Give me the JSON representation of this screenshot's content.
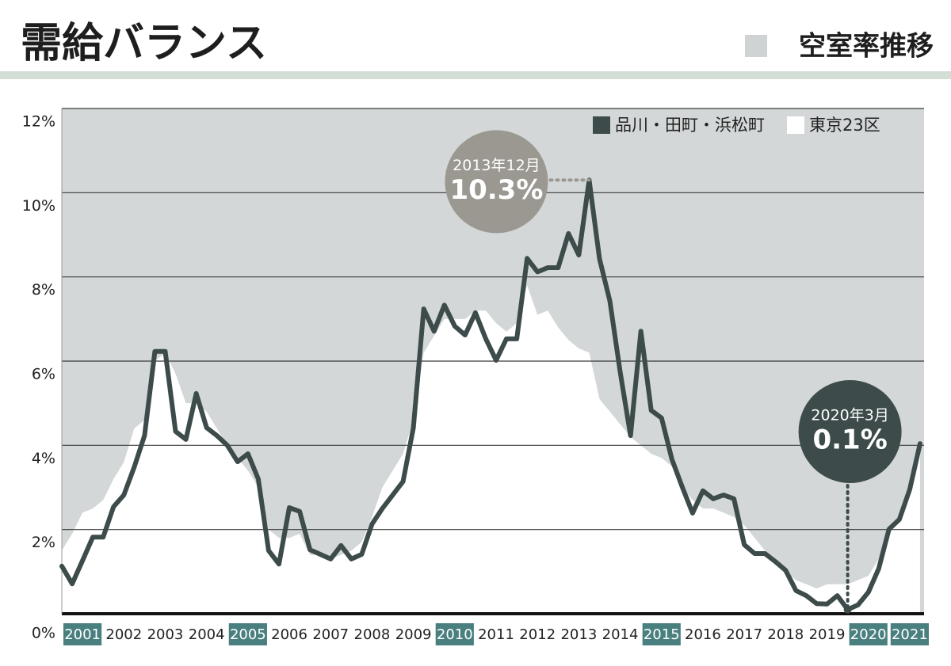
{
  "chart_data": {
    "type": "line",
    "title": "需給バランス",
    "subtitle": "空室率推移",
    "xlim": [
      2001,
      2022
    ],
    "xticks": [
      2001,
      2002,
      2003,
      2004,
      2005,
      2006,
      2007,
      2008,
      2009,
      2010,
      2011,
      2012,
      2013,
      2014,
      2015,
      2016,
      2017,
      2018,
      2019,
      2020,
      2021
    ],
    "highlight_xticks": [
      2001,
      2005,
      2010,
      2015,
      2020,
      2021
    ],
    "ylim": [
      0,
      12
    ],
    "yticks": [
      {
        "value": 0,
        "label": "0%"
      },
      {
        "value": 2,
        "label": "2%"
      },
      {
        "value": 4,
        "label": "4%"
      },
      {
        "value": 6,
        "label": "6%"
      },
      {
        "value": 8,
        "label": "8%"
      },
      {
        "value": 10,
        "label": "10%"
      },
      {
        "value": 12,
        "label": "12%"
      }
    ],
    "grid": true,
    "legend": "top-right",
    "x": [
      2001,
      2001.25,
      2001.5,
      2001.75,
      2002,
      2002.25,
      2002.5,
      2002.75,
      2003,
      2003.25,
      2003.5,
      2003.75,
      2004,
      2004.25,
      2004.5,
      2004.75,
      2005,
      2005.25,
      2005.5,
      2005.75,
      2006,
      2006.25,
      2006.5,
      2006.75,
      2007,
      2007.25,
      2007.5,
      2007.75,
      2008,
      2008.25,
      2008.5,
      2008.75,
      2009,
      2009.25,
      2009.5,
      2009.75,
      2010,
      2010.25,
      2010.5,
      2010.75,
      2011,
      2011.25,
      2011.5,
      2011.75,
      2012,
      2012.25,
      2012.5,
      2012.75,
      2013,
      2013.25,
      2013.5,
      2013.75,
      2014,
      2014.25,
      2014.5,
      2014.75,
      2015,
      2015.25,
      2015.5,
      2015.75,
      2016,
      2016.25,
      2016.5,
      2016.75,
      2017,
      2017.25,
      2017.5,
      2017.75,
      2018,
      2018.25,
      2018.5,
      2018.75,
      2019,
      2019.25,
      2019.5,
      2019.75,
      2020,
      2020.25,
      2020.5,
      2020.75,
      2021,
      2021.25,
      2021.5,
      2021.75
    ],
    "series": [
      {
        "name": "品川・田町・浜松町",
        "color": "#3d4b4b",
        "kind": "line",
        "values": [
          1.13,
          0.71,
          1.26,
          1.82,
          1.82,
          2.54,
          2.82,
          3.48,
          4.23,
          6.23,
          6.23,
          4.33,
          4.14,
          5.23,
          4.42,
          4.23,
          4.0,
          3.61,
          3.8,
          3.2,
          1.5,
          1.18,
          2.52,
          2.43,
          1.52,
          1.41,
          1.3,
          1.62,
          1.3,
          1.41,
          2.13,
          2.5,
          2.82,
          3.14,
          4.42,
          7.24,
          6.71,
          7.33,
          6.83,
          6.62,
          7.15,
          6.53,
          6.02,
          6.53,
          6.53,
          8.44,
          8.12,
          8.22,
          8.22,
          9.03,
          8.52,
          10.3,
          8.43,
          7.43,
          5.74,
          4.23,
          6.71,
          4.83,
          4.65,
          3.67,
          3.01,
          2.39,
          2.92,
          2.73,
          2.82,
          2.73,
          1.64,
          1.43,
          1.43,
          1.24,
          1.03,
          0.55,
          0.43,
          0.24,
          0.23,
          0.43,
          0.1,
          0.21,
          0.51,
          1.07,
          2.01,
          2.24,
          2.95,
          4.04
        ]
      },
      {
        "name": "東京23区",
        "color": "#ffffff",
        "kind": "area",
        "values": [
          1.5,
          1.9,
          2.4,
          2.5,
          2.7,
          3.2,
          3.6,
          4.4,
          4.6,
          6.0,
          6.2,
          5.7,
          5.0,
          5.0,
          4.8,
          4.4,
          4.0,
          3.7,
          3.4,
          3.0,
          2.0,
          1.8,
          1.8,
          1.9,
          1.4,
          1.4,
          1.3,
          1.4,
          1.5,
          1.7,
          2.3,
          3.0,
          3.4,
          3.8,
          4.6,
          6.2,
          6.6,
          7.0,
          7.0,
          7.0,
          7.2,
          7.2,
          6.9,
          6.7,
          6.9,
          7.8,
          7.1,
          7.2,
          6.8,
          6.5,
          6.3,
          6.2,
          5.1,
          4.8,
          4.5,
          4.2,
          4.0,
          3.8,
          3.7,
          3.5,
          3.0,
          2.7,
          2.5,
          2.5,
          2.4,
          2.3,
          2.1,
          1.8,
          1.5,
          1.3,
          1.0,
          0.8,
          0.7,
          0.6,
          0.7,
          0.7,
          0.7,
          0.8,
          0.9,
          1.3,
          1.9,
          2.2,
          2.9,
          3.9
        ]
      }
    ],
    "annotations": [
      {
        "text": "2013年12月",
        "label": "10.3%",
        "color": "#9a9890"
      },
      {
        "text": "2020年3月",
        "label": "0.1%",
        "color": "#3d4b4b"
      }
    ]
  }
}
